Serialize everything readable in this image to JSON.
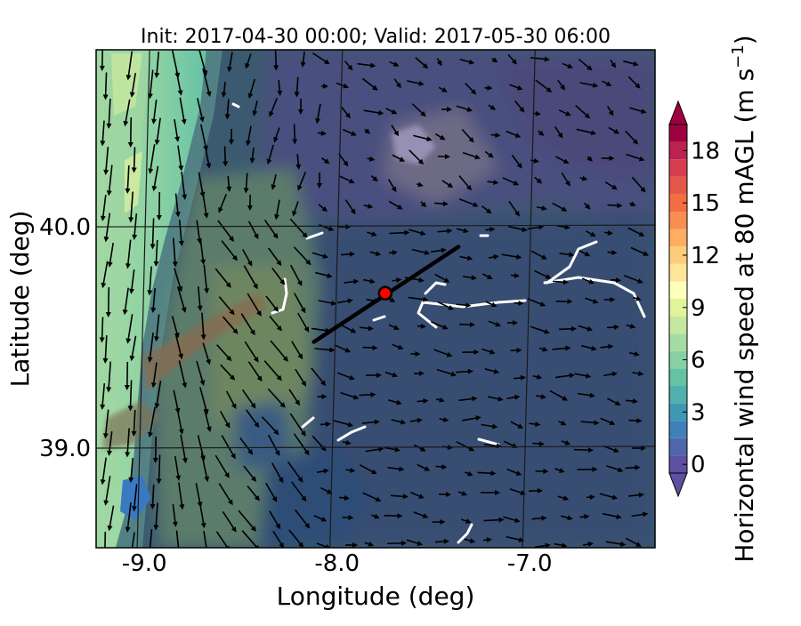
{
  "chart_data": {
    "type": "heatmap",
    "title": "Init: 2017-04-30 00:00; Valid: 2017-05-30 06:00",
    "xlabel": "Longitude (deg)",
    "ylabel": "Latitude (deg)",
    "xlim": [
      -9.25,
      -6.35
    ],
    "ylim": [
      38.55,
      40.8
    ],
    "x_ticks": [
      {
        "value": -9.0,
        "label": "-9.0"
      },
      {
        "value": -8.0,
        "label": "-8.0"
      },
      {
        "value": -7.0,
        "label": "-7.0"
      }
    ],
    "y_ticks": [
      {
        "value": 40.0,
        "label": "40.0"
      },
      {
        "value": 39.0,
        "label": "39.0"
      }
    ],
    "grid": true,
    "field": "Horizontal wind speed at 80 mAGL",
    "colorbar": {
      "label": "Horizontal wind speed at 80 mAGL (m s",
      "label_superscript": "−1",
      "label_suffix": ")",
      "min": 0,
      "max": 20,
      "step": 1,
      "ticks": [
        {
          "value": 0,
          "label": "0"
        },
        {
          "value": 3,
          "label": "3"
        },
        {
          "value": 6,
          "label": "6"
        },
        {
          "value": 9,
          "label": "9"
        },
        {
          "value": 12,
          "label": "12"
        },
        {
          "value": 15,
          "label": "15"
        },
        {
          "value": 18,
          "label": "18"
        }
      ],
      "extend": "both",
      "colors": [
        "#5e4fa2",
        "#4f66ad",
        "#3f80b9",
        "#3f98b3",
        "#4fb0ad",
        "#66c2a5",
        "#88d0a4",
        "#a6dba4",
        "#c5e79f",
        "#e2f49b",
        "#fefebd",
        "#fee597",
        "#fdcd7b",
        "#fdae61",
        "#f98e52",
        "#f46d43",
        "#e55749",
        "#d53e4f",
        "#bc2250",
        "#9e0142"
      ]
    },
    "transect": {
      "start": {
        "lon": -8.12,
        "lat": 39.48
      },
      "end": {
        "lon": -7.37,
        "lat": 39.91
      },
      "marker": {
        "lon": -7.75,
        "lat": 39.7
      },
      "line_color": "#000000",
      "marker_color": "#ff0000"
    },
    "wind_regimes": [
      {
        "region": "west coast (lon < -8.9)",
        "speed_ms": 7,
        "direction": "from north"
      },
      {
        "region": "lon -8.9 to -8.1, lat < 39.9",
        "speed_ms": 5,
        "direction": "from north-northwest"
      },
      {
        "region": "lon > -8.0",
        "speed_ms": 2,
        "direction": "from west to northwest"
      }
    ]
  }
}
